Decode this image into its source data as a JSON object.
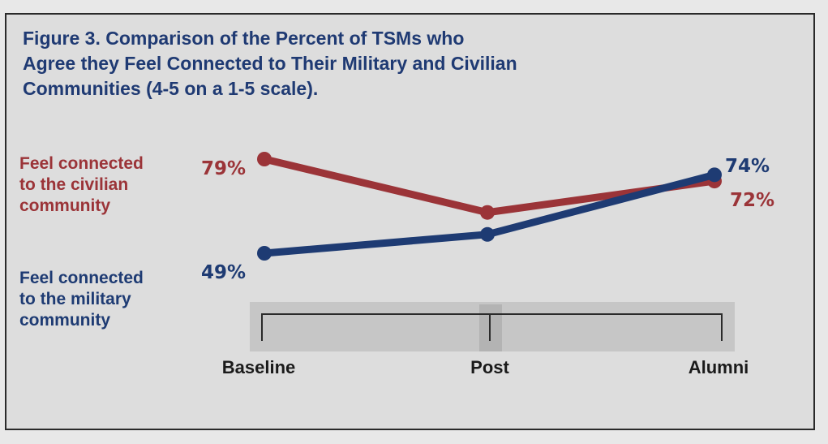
{
  "chart_data": {
    "type": "line",
    "title": "Figure 3. Comparison of the Percent of TSMs who Agree they Feel Connected to Their Military and Civilian Communities (4-5 on a 1-5 scale).",
    "title_lines": [
      "Figure 3. Comparison of the Percent of TSMs who",
      "Agree they Feel Connected to Their Military and Civilian",
      "Communities (4-5 on a 1-5 scale)."
    ],
    "categories": [
      "Baseline",
      "Post",
      "Alumni"
    ],
    "ylim": [
      40,
      85
    ],
    "grid": false,
    "legend_placement": "left",
    "series": [
      {
        "key": "civilian",
        "name": "Feel connected to the civilian community",
        "name_lines": [
          "Feel connected",
          "to the civilian",
          "community"
        ],
        "color": "#9b3438",
        "values": [
          79,
          62,
          72
        ],
        "labels": [
          "79%",
          null,
          "72%"
        ]
      },
      {
        "key": "military",
        "name": "Feel connected to the military community",
        "name_lines": [
          "Feel connected",
          "to the military",
          "community"
        ],
        "color": "#1e3b73",
        "values": [
          49,
          55,
          74
        ],
        "labels": [
          "49%",
          null,
          "74%"
        ]
      }
    ]
  }
}
